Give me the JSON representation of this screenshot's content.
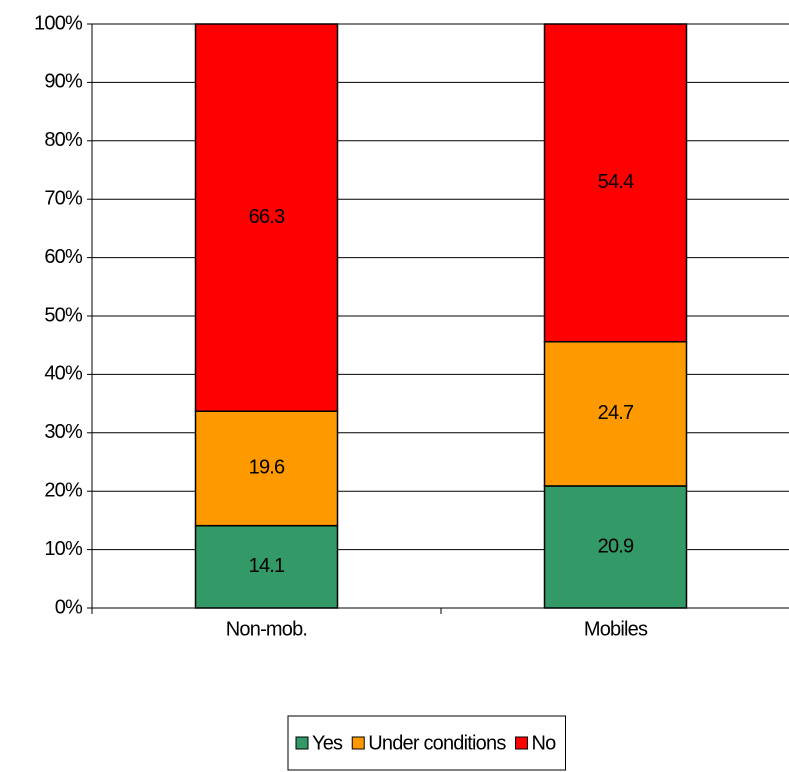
{
  "chart_data": {
    "type": "stacked_bar",
    "categories": [
      "Non-mob.",
      "Mobiles"
    ],
    "series": [
      {
        "name": "Yes",
        "color": "#339966",
        "values": [
          14.1,
          20.9
        ]
      },
      {
        "name": "Under conditions",
        "color": "#ff9900",
        "values": [
          19.6,
          24.7
        ]
      },
      {
        "name": "No",
        "color": "#ff0000",
        "values": [
          66.3,
          54.4
        ]
      }
    ],
    "ylim": [
      0,
      100
    ],
    "yticks": [
      {
        "value": 0,
        "label": "0%"
      },
      {
        "value": 10,
        "label": "10%"
      },
      {
        "value": 20,
        "label": "20%"
      },
      {
        "value": 30,
        "label": "30%"
      },
      {
        "value": 40,
        "label": "40%"
      },
      {
        "value": 50,
        "label": "50%"
      },
      {
        "value": 60,
        "label": "60%"
      },
      {
        "value": 70,
        "label": "70%"
      },
      {
        "value": 80,
        "label": "80%"
      },
      {
        "value": 90,
        "label": "90%"
      },
      {
        "value": 100,
        "label": "100%"
      }
    ],
    "grid": true,
    "legend": "bottom"
  }
}
